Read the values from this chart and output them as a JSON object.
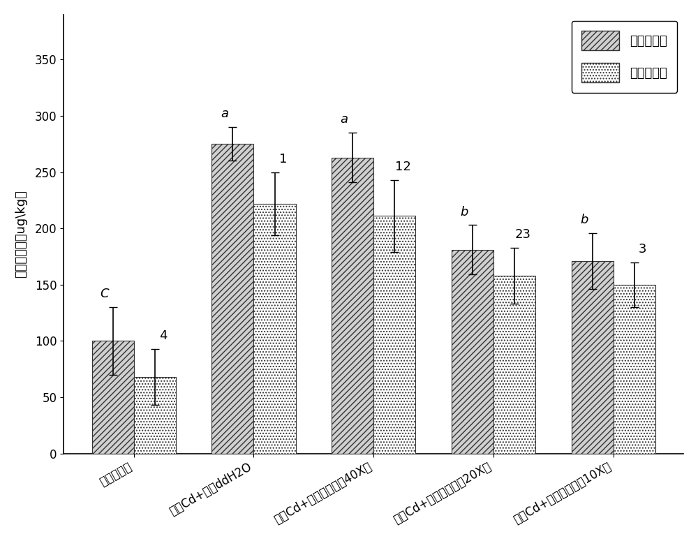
{
  "categories": [
    "未污染土壤",
    "外源Cd+喷施ddH2O",
    "外源Cd+喷施叶面肥（40X）",
    "外源Cd+喷施叶面肥（20X）",
    "外源Cd+喷施叶面肥（10X）"
  ],
  "indica_values": [
    100,
    275,
    263,
    181,
    171
  ],
  "japonica_values": [
    68,
    222,
    211,
    158,
    150
  ],
  "indica_errors": [
    30,
    15,
    22,
    22,
    25
  ],
  "japonica_errors": [
    25,
    28,
    32,
    25,
    20
  ],
  "indica_labels": [
    "C",
    "a",
    "a",
    "b",
    "b"
  ],
  "japonica_labels": [
    "4",
    "1",
    "12",
    "23",
    "3"
  ],
  "ylabel": "糙米镉含量（ug\\kg）",
  "ylim": [
    0,
    390
  ],
  "yticks": [
    0,
    50,
    100,
    150,
    200,
    250,
    300,
    350
  ],
  "legend_indica": "籼稻镉含量",
  "legend_japonica": "粳稻镉含量",
  "bar_width": 0.35,
  "background_color": "#ffffff",
  "indica_hatch": "////",
  "japonica_hatch": "....",
  "bar_edge_color": "#333333",
  "bar_face_color": "#d0d0d0",
  "font_size_labels": 13,
  "font_size_ticks": 12,
  "font_size_legend": 13,
  "font_size_annot": 13
}
